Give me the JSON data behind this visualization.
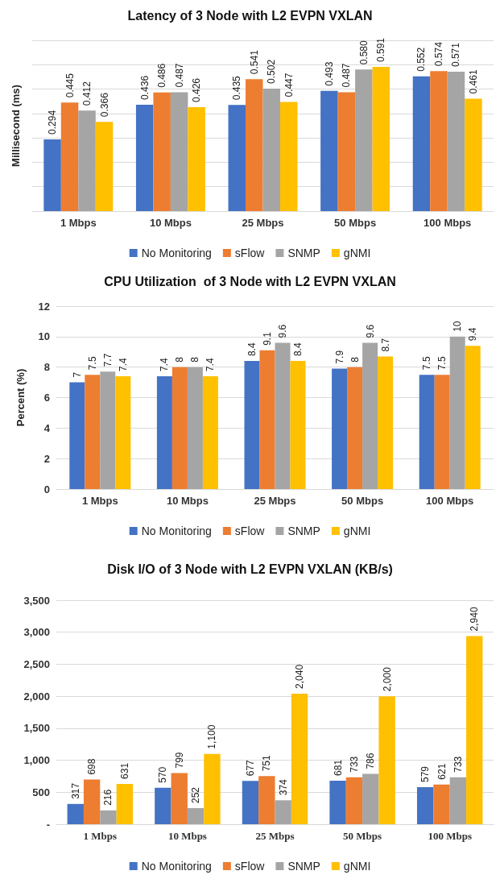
{
  "chart_data": [
    {
      "type": "bar",
      "title": "Latency of 3 Node with L2 EVPN VXLAN",
      "ylabel": "Millisecond (ms)",
      "categories": [
        "1 Mbps",
        "10 Mbps",
        "25 Mbps",
        "50 Mbps",
        "100 Mbps"
      ],
      "series": [
        {
          "name": "No Monitoring",
          "color": "#4472c4",
          "values": [
            0.294,
            0.436,
            0.435,
            0.493,
            0.552
          ],
          "value_labels": [
            "0.294",
            "0.436",
            "0.435",
            "0.493",
            "0.552"
          ]
        },
        {
          "name": "sFlow",
          "color": "#ed7d31",
          "values": [
            0.445,
            0.486,
            0.541,
            0.487,
            0.574
          ],
          "value_labels": [
            "0.445",
            "0.486",
            "0.541",
            "0.487",
            "0.574"
          ]
        },
        {
          "name": "SNMP",
          "color": "#a5a5a5",
          "values": [
            0.412,
            0.487,
            0.502,
            0.58,
            0.571
          ],
          "value_labels": [
            "0.412",
            "0.487",
            "0.502",
            "0.580",
            "0.571"
          ]
        },
        {
          "name": "gNMI",
          "color": "#ffc000",
          "values": [
            0.366,
            0.426,
            0.447,
            0.591,
            0.461
          ],
          "value_labels": [
            "0.366",
            "0.426",
            "0.447",
            "0.591",
            "0.461"
          ]
        }
      ],
      "ylim": [
        0,
        0.7
      ],
      "yticks": [
        {
          "value": 0,
          "label": null
        },
        {
          "value": 0.1,
          "label": null
        },
        {
          "value": 0.2,
          "label": null
        },
        {
          "value": 0.3,
          "label": null
        },
        {
          "value": 0.4,
          "label": null
        },
        {
          "value": 0.5,
          "label": null
        },
        {
          "value": 0.6,
          "label": null
        },
        {
          "value": 0.7,
          "label": null
        }
      ],
      "tick_labels": "x",
      "grid": "y",
      "legend": "bottom"
    },
    {
      "type": "bar",
      "title": "CPU Utilization  of 3 Node with L2 EVPN VXLAN",
      "ylabel": "Percent (%)",
      "categories": [
        "1 Mbps",
        "10 Mbps",
        "25 Mbps",
        "50 Mbps",
        "100 Mbps"
      ],
      "series": [
        {
          "name": "No Monitoring",
          "color": "#4472c4",
          "values": [
            7,
            7.4,
            8.4,
            7.9,
            7.5
          ]
        },
        {
          "name": "sFlow",
          "color": "#ed7d31",
          "values": [
            7.5,
            8,
            9.1,
            8,
            7.5
          ]
        },
        {
          "name": "SNMP",
          "color": "#a5a5a5",
          "values": [
            7.7,
            8,
            9.6,
            9.6,
            10
          ]
        },
        {
          "name": "gNMI",
          "color": "#ffc000",
          "values": [
            7.4,
            7.4,
            8.4,
            8.7,
            9.4
          ]
        }
      ],
      "ylim": [
        0,
        12
      ],
      "yticks": [
        0,
        2,
        4,
        6,
        8,
        10,
        12
      ],
      "grid": "y",
      "legend": "bottom",
      "data_labels": true
    },
    {
      "type": "bar",
      "title": "Disk I/O of 3 Node with L2 EVPN VXLAN (KB/s)",
      "categories": [
        "1 Mbps",
        "10 Mbps",
        "25 Mbps",
        "50 Mbps",
        "100 Mbps"
      ],
      "series": [
        {
          "name": "No Monitoring",
          "color": "#4472c4",
          "values": [
            317,
            570,
            677,
            681,
            579
          ],
          "value_labels": [
            "317",
            "570",
            "677",
            "681",
            "579"
          ]
        },
        {
          "name": "sFlow",
          "color": "#ed7d31",
          "values": [
            698,
            799,
            751,
            733,
            621
          ],
          "value_labels": [
            "698",
            "799",
            "751",
            "733",
            "621"
          ]
        },
        {
          "name": "SNMP",
          "color": "#a5a5a5",
          "values": [
            216,
            252,
            374,
            786,
            733
          ],
          "value_labels": [
            "216",
            "252",
            "374",
            "786",
            "733"
          ]
        },
        {
          "name": "gNMI",
          "color": "#ffc000",
          "values": [
            631,
            1100,
            2040,
            2000,
            2940
          ],
          "value_labels": [
            "631",
            "1,100",
            "2,040",
            "2,000",
            "2,940"
          ]
        }
      ],
      "ylim": [
        0,
        3500
      ],
      "yticks": [
        {
          "value": 0,
          "label": "-"
        },
        500,
        {
          "value": 1000,
          "label": "1,000"
        },
        {
          "value": 1500,
          "label": "1,500"
        },
        {
          "value": 2000,
          "label": "2,000"
        },
        {
          "value": 2500,
          "label": "2,500"
        },
        {
          "value": 3000,
          "label": "3,000"
        },
        {
          "value": 3500,
          "label": "3,500"
        }
      ],
      "grid": "y",
      "legend": "bottom"
    }
  ]
}
